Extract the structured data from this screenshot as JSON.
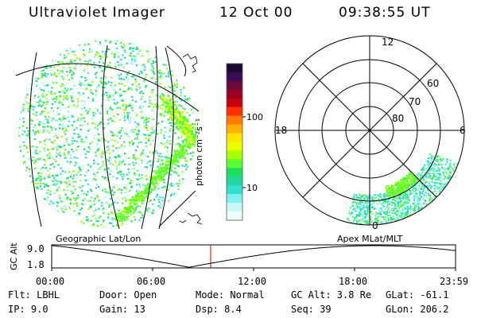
{
  "header": {
    "instrument": "Ultraviolet Imager",
    "date": "12 Oct 00",
    "time": "09:38:55 UT"
  },
  "colorbar": {
    "unit_text": "photon cm⁻²s⁻¹",
    "tick_labels": [
      "100",
      "10"
    ],
    "colors": [
      "#1a0a33",
      "#3a0a55",
      "#6a0a3a",
      "#9a0022",
      "#c80010",
      "#ff3000",
      "#ff7a00",
      "#ffb000",
      "#ffe400",
      "#e8ff00",
      "#a8ff00",
      "#58ff30",
      "#18e060",
      "#20d8a0",
      "#30e0d0",
      "#80f0f0",
      "#c8f8f8",
      "#f0fcfc"
    ]
  },
  "geo_panel": {
    "label": "Geographic Lat/Lon"
  },
  "polar_panel": {
    "label": "Apex MLat/MLT",
    "mlt_labels": {
      "top": "12",
      "left": "18",
      "right": "6",
      "bottom": "0"
    },
    "lat_labels": [
      "60",
      "70",
      "80"
    ]
  },
  "altitude_plot": {
    "axis_label": "GC Alt",
    "y_ticks": [
      "9.0",
      "1.8"
    ],
    "x_ticks": [
      "00:00",
      "06:00",
      "12:00",
      "18:00",
      "23:59"
    ],
    "marker_color": "#cc0000"
  },
  "info": {
    "filter": "Flt: LBHL",
    "ip": "IP:  9.0",
    "door": "Door: Open",
    "gain": "Gain: 13",
    "mode": "Mode: Normal",
    "dsp": "Dsp:    8.4",
    "gc_alt": "GC Alt: 3.8 Re",
    "seq": "Seq: 39",
    "glat": "GLat: -61.1",
    "glon": "GLon: 206.2"
  }
}
